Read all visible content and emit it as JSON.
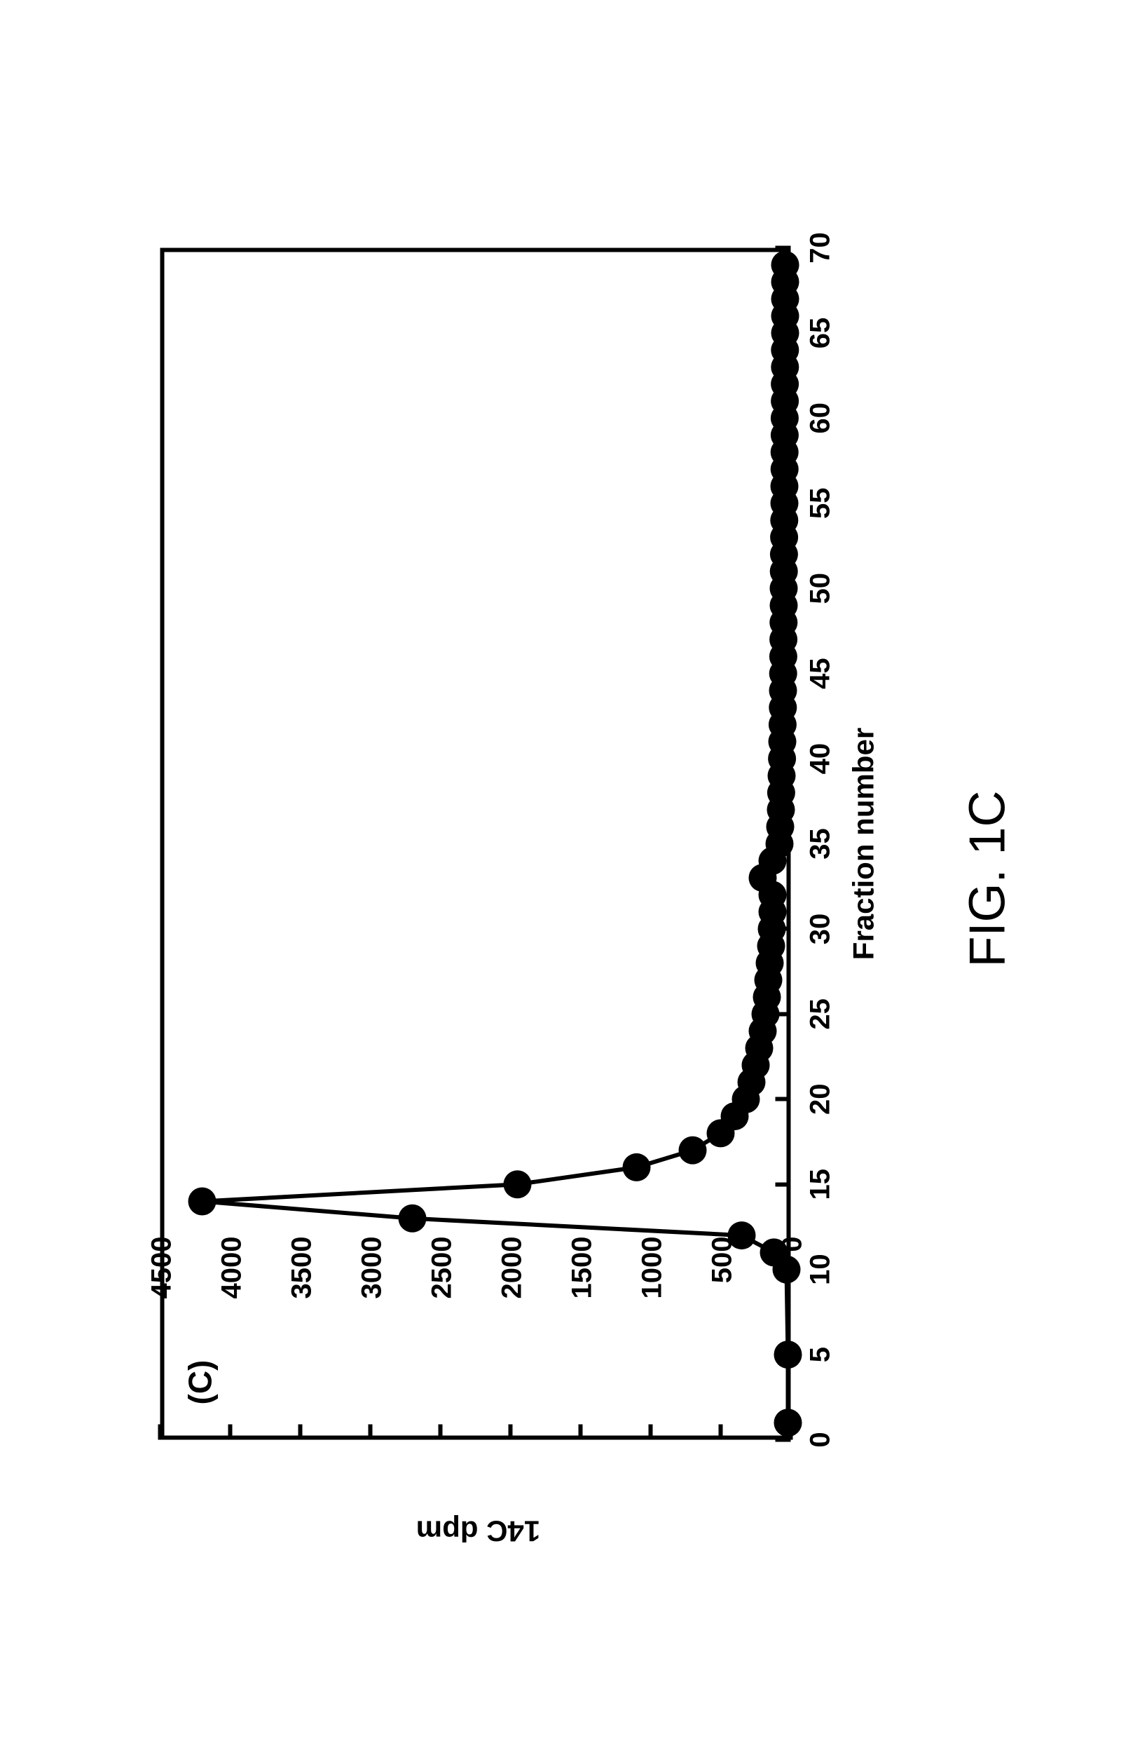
{
  "figure": {
    "caption": "FIG. 1C",
    "caption_fontsize": 72,
    "panel_label": "(C)",
    "panel_label_fontsize": 46,
    "background_color": "#ffffff",
    "border_color": "#000000",
    "border_width": 6,
    "chart": {
      "type": "line-scatter",
      "x_label": "Fraction number",
      "y_label": "14C dpm",
      "label_fontsize": 42,
      "tick_fontsize": 40,
      "xlim": [
        0,
        70
      ],
      "ylim": [
        0,
        4500
      ],
      "x_ticks": [
        0,
        5,
        10,
        15,
        20,
        25,
        30,
        35,
        40,
        45,
        50,
        55,
        60,
        65,
        70
      ],
      "y_ticks": [
        0,
        500,
        1000,
        1500,
        2000,
        2500,
        3000,
        3500,
        4000,
        4500
      ],
      "line_color": "#000000",
      "line_width": 6,
      "marker_color": "#000000",
      "marker_shape": "circle",
      "marker_radius": 20,
      "series": [
        {
          "name": "14C",
          "x": [
            1,
            5,
            10,
            11,
            12,
            13,
            14,
            15,
            16,
            17,
            18,
            19,
            20,
            21,
            22,
            23,
            24,
            25,
            26,
            27,
            28,
            29,
            30,
            31,
            32,
            33,
            34,
            35,
            36,
            37,
            38,
            39,
            40,
            41,
            42,
            43,
            44,
            45,
            46,
            47,
            48,
            49,
            50,
            51,
            52,
            53,
            54,
            55,
            56,
            57,
            58,
            59,
            60,
            61,
            62,
            63,
            64,
            65,
            66,
            67,
            68,
            69
          ],
          "y": [
            20,
            20,
            30,
            120,
            350,
            2700,
            4200,
            1950,
            1100,
            700,
            500,
            400,
            320,
            280,
            250,
            225,
            200,
            180,
            170,
            160,
            150,
            140,
            135,
            130,
            130,
            200,
            130,
            80,
            75,
            70,
            68,
            65,
            62,
            60,
            58,
            56,
            55,
            54,
            53,
            52,
            51,
            50,
            50,
            49,
            48,
            47,
            46,
            45,
            45,
            44,
            44,
            43,
            43,
            42,
            42,
            41,
            41,
            40,
            40,
            40,
            40,
            40
          ]
        }
      ]
    }
  }
}
